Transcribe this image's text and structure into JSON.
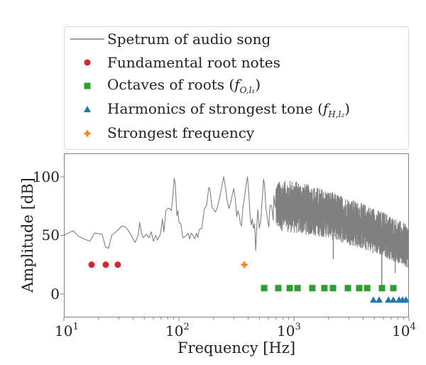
{
  "chart_data": {
    "type": "line",
    "title": "",
    "xlabel": "Frequency [Hz]",
    "ylabel": "Amplitude [dB]",
    "xscale": "log",
    "xlim": [
      10,
      10000
    ],
    "ylim": [
      -20,
      120
    ],
    "xticks": [
      10,
      100,
      1000,
      10000
    ],
    "xtick_labels": [
      {
        "base": "10",
        "exp": "1"
      },
      {
        "base": "10",
        "exp": "2"
      },
      {
        "base": "10",
        "exp": "3"
      },
      {
        "base": "10",
        "exp": "4"
      }
    ],
    "yticks": [
      0,
      50,
      100
    ],
    "ytick_labels": [
      "0",
      "50",
      "100"
    ],
    "grid": false,
    "legend_position": "top (above axes)",
    "legend": [
      {
        "label": "Spetrum of audio song",
        "marker": "line",
        "color": "#808080"
      },
      {
        "label": "Fundamental root notes",
        "marker": "circle",
        "color": "#d62728"
      },
      {
        "label_text": "Octaves of roots (",
        "label_math": "f",
        "label_sub": "O,l₁",
        "label_end": ")",
        "label": "Octaves of roots (f_{O,l_1})",
        "marker": "square",
        "color": "#2ca02c"
      },
      {
        "label_text": "Harmonics of strongest tone (",
        "label_math": "f",
        "label_sub": "H,l₂",
        "label_end": ")",
        "label": "Harmonics of strongest tone (f_{H,l_2})",
        "marker": "triangle",
        "color": "#1f77b4"
      },
      {
        "label": "Strongest frequency",
        "marker": "plus",
        "color": "#ff7f0e"
      }
    ],
    "series": [
      {
        "name": "Spetrum of audio song",
        "type": "line",
        "color": "#808080",
        "points": [
          [
            10.0,
            50
          ],
          [
            12.0,
            54
          ],
          [
            13.5,
            49
          ],
          [
            15.0,
            47
          ],
          [
            16.8,
            45
          ],
          [
            18.5,
            52
          ],
          [
            21.5,
            51
          ],
          [
            23.0,
            40
          ],
          [
            24.5,
            39
          ],
          [
            26.0,
            50
          ],
          [
            29.0,
            54
          ],
          [
            32.0,
            58
          ],
          [
            34.5,
            57
          ],
          [
            37.0,
            53
          ],
          [
            40.0,
            47
          ],
          [
            41.5,
            44
          ],
          [
            43.0,
            47
          ],
          [
            44.5,
            51
          ],
          [
            45.5,
            61
          ],
          [
            47.5,
            51
          ],
          [
            49.0,
            48
          ],
          [
            52.0,
            51
          ],
          [
            55.0,
            48
          ],
          [
            57.5,
            53
          ],
          [
            60.0,
            45
          ],
          [
            63.0,
            50
          ],
          [
            65.0,
            46
          ],
          [
            69.0,
            51
          ],
          [
            72.0,
            64
          ],
          [
            74.0,
            53
          ],
          [
            77.0,
            71
          ],
          [
            80.0,
            73
          ],
          [
            83.0,
            73
          ],
          [
            86.0,
            71
          ],
          [
            88.0,
            80
          ],
          [
            91.0,
            99
          ],
          [
            93.0,
            94
          ],
          [
            96.0,
            67
          ],
          [
            98.0,
            71
          ],
          [
            100.0,
            61
          ],
          [
            104.0,
            60
          ],
          [
            108.0,
            48
          ],
          [
            112.0,
            49
          ],
          [
            116.0,
            50
          ],
          [
            120.0,
            52
          ],
          [
            124.0,
            47
          ],
          [
            128.0,
            52
          ],
          [
            133.0,
            50
          ],
          [
            137.0,
            47
          ],
          [
            142.0,
            52
          ],
          [
            146.0,
            48
          ],
          [
            150.0,
            55
          ],
          [
            158.0,
            56
          ],
          [
            166.0,
            72
          ],
          [
            174.0,
            76
          ],
          [
            182.0,
            91
          ],
          [
            186.0,
            89
          ],
          [
            194.0,
            74
          ],
          [
            208.0,
            70
          ],
          [
            216.0,
            74
          ],
          [
            230.0,
            86
          ],
          [
            245.0,
            100
          ],
          [
            255.0,
            90
          ],
          [
            262.0,
            80
          ],
          [
            272.0,
            73
          ],
          [
            282.0,
            78
          ],
          [
            290.0,
            84
          ],
          [
            300.0,
            90
          ],
          [
            310.0,
            80
          ],
          [
            318.0,
            66
          ],
          [
            325.0,
            71
          ],
          [
            335.0,
            67
          ],
          [
            342.0,
            60
          ],
          [
            350.0,
            58
          ],
          [
            360.0,
            74
          ],
          [
            370.0,
            81
          ],
          [
            385.0,
            94
          ],
          [
            395.0,
            100
          ],
          [
            405.0,
            86
          ],
          [
            415.0,
            68
          ],
          [
            425.0,
            59
          ],
          [
            435.0,
            64
          ],
          [
            445.0,
            56
          ],
          [
            455.0,
            60
          ],
          [
            465.0,
            37
          ],
          [
            475.0,
            57
          ],
          [
            485.0,
            72
          ],
          [
            500.0,
            56
          ],
          [
            515.0,
            63
          ],
          [
            530.0,
            81
          ],
          [
            545.0,
            98
          ],
          [
            555.0,
            93
          ],
          [
            570.0,
            74
          ],
          [
            590.0,
            63
          ],
          [
            605.0,
            57
          ],
          [
            615.0,
            72
          ],
          [
            625.0,
            76
          ],
          [
            640.0,
            75
          ],
          [
            660.0,
            63
          ],
          [
            670.0,
            84
          ],
          [
            680.0,
            78
          ],
          [
            690.0,
            74
          ]
        ],
        "noise_region": {
          "from_hz": 700,
          "to_hz": 10000,
          "upper_envelope_db": [
            [
              700,
              96
            ],
            [
              1000,
              97
            ],
            [
              2000,
              88
            ],
            [
              4000,
              77
            ],
            [
              6000,
              70
            ],
            [
              10000,
              58
            ]
          ],
          "lower_envelope_db": [
            [
              700,
              55
            ],
            [
              1000,
              52
            ],
            [
              2000,
              48
            ],
            [
              4000,
              38
            ],
            [
              6000,
              32
            ],
            [
              10000,
              22
            ]
          ],
          "deep_dips": [
            [
              2200,
              30
            ],
            [
              5800,
              8
            ],
            [
              7600,
              18
            ]
          ]
        }
      },
      {
        "name": "Fundamental root notes",
        "type": "scatter",
        "marker": "circle",
        "color": "#d62728",
        "x": [
          17.4,
          23.1,
          29.4
        ],
        "y": [
          25,
          25,
          25
        ]
      },
      {
        "name": "Octaves of roots",
        "type": "scatter",
        "marker": "square",
        "color": "#2ca02c",
        "x": [
          551,
          731,
          918,
          1075,
          1445,
          1840,
          2186,
          2947,
          3697,
          4326,
          5826,
          7317
        ],
        "y": [
          5,
          5,
          5,
          5,
          5,
          5,
          5,
          5,
          5,
          5,
          5,
          5
        ]
      },
      {
        "name": "Harmonics of strongest tone",
        "type": "scatter",
        "marker": "triangle",
        "color": "#1f77b4",
        "x": [
          4908,
          5503,
          6627,
          7317,
          8201,
          8795,
          9430
        ],
        "y": [
          -5,
          -5,
          -5,
          -5,
          -5,
          -5,
          -5
        ]
      },
      {
        "name": "Strongest frequency",
        "type": "scatter",
        "marker": "plus",
        "color": "#ff7f0e",
        "x": [
          370
        ],
        "y": [
          25
        ]
      }
    ]
  }
}
